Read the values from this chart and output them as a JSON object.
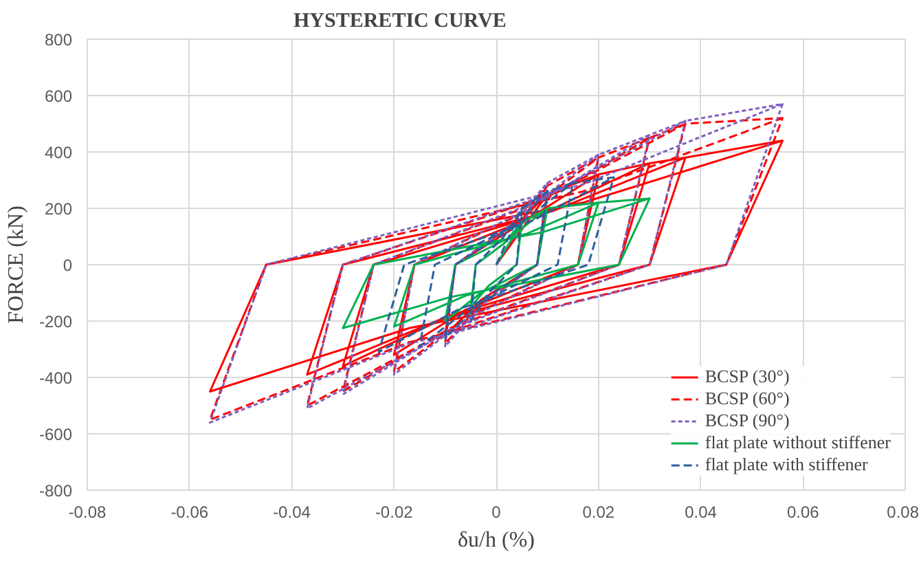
{
  "chart_data": {
    "type": "line",
    "title": "HYSTERETIC CURVE",
    "xlabel": "δu/h (%)",
    "ylabel": "FORCE (kN)",
    "xlim": [
      -0.08,
      0.08
    ],
    "xticks": [
      -0.08,
      -0.06,
      -0.04,
      -0.02,
      0,
      0.02,
      0.04,
      0.06,
      0.08
    ],
    "ylim": [
      -800,
      800
    ],
    "yticks": [
      -800,
      -600,
      -400,
      -200,
      0,
      200,
      400,
      600,
      800
    ],
    "grid": true,
    "legend": "bottom right",
    "series": [
      {
        "name": "BCSP (30°)",
        "color": "#ff0000",
        "line_style": "solid",
        "x": [
          0,
          0.01,
          0.008,
          -0.003,
          -0.01,
          -0.008,
          0.003,
          0.01,
          0.02,
          0.016,
          -0.006,
          -0.02,
          -0.016,
          0.006,
          0.02,
          0.03,
          0.024,
          -0.009,
          -0.03,
          -0.024,
          0.009,
          0.03,
          0.037,
          0.03,
          -0.011,
          -0.037,
          -0.03,
          0.011,
          0.037,
          0.056,
          0.045,
          -0.017,
          -0.056,
          -0.045,
          0.017,
          0.056
        ],
        "values": [
          0,
          250,
          0,
          -125,
          -250,
          0,
          125,
          250,
          320,
          0,
          -160,
          -320,
          0,
          160,
          320,
          360,
          0,
          -180,
          -360,
          0,
          180,
          360,
          380,
          0,
          -195,
          -390,
          0,
          190,
          380,
          440,
          0,
          -225,
          -450,
          0,
          220,
          440
        ]
      },
      {
        "name": "BCSP (60°)",
        "color": "#ff0000",
        "line_style": "dashed",
        "x": [
          0,
          0.01,
          0.008,
          -0.003,
          -0.01,
          -0.008,
          0.003,
          0.01,
          0.02,
          0.016,
          -0.006,
          -0.02,
          -0.016,
          0.006,
          0.02,
          0.03,
          0.024,
          -0.009,
          -0.03,
          -0.024,
          0.009,
          0.03,
          0.037,
          0.03,
          -0.011,
          -0.037,
          -0.03,
          0.011,
          0.037,
          0.056,
          0.045,
          -0.017,
          -0.056,
          -0.045,
          0.017,
          0.056
        ],
        "values": [
          0,
          280,
          0,
          -140,
          -280,
          0,
          140,
          280,
          380,
          0,
          -190,
          -380,
          0,
          190,
          380,
          450,
          0,
          -225,
          -450,
          0,
          225,
          450,
          500,
          0,
          -250,
          -500,
          0,
          250,
          500,
          520,
          0,
          -275,
          -550,
          0,
          260,
          520
        ]
      },
      {
        "name": "BCSP (90°)",
        "color": "#7f5fbf",
        "line_style": "dotted",
        "x": [
          0,
          0.01,
          0.008,
          -0.003,
          -0.01,
          -0.008,
          0.003,
          0.01,
          0.02,
          0.016,
          -0.006,
          -0.02,
          -0.016,
          0.006,
          0.02,
          0.03,
          0.024,
          -0.009,
          -0.03,
          -0.024,
          0.009,
          0.03,
          0.037,
          0.03,
          -0.011,
          -0.037,
          -0.03,
          0.011,
          0.037,
          0.056,
          0.045,
          -0.017,
          -0.056,
          -0.045,
          0.017,
          0.056
        ],
        "values": [
          0,
          290,
          0,
          -145,
          -290,
          0,
          145,
          290,
          390,
          0,
          -195,
          -390,
          0,
          195,
          390,
          460,
          0,
          -230,
          -460,
          0,
          230,
          460,
          510,
          0,
          -255,
          -510,
          0,
          255,
          510,
          570,
          0,
          -280,
          -560,
          0,
          285,
          570
        ]
      },
      {
        "name": "flat plate without stiffener",
        "color": "#00b050",
        "line_style": "solid",
        "x": [
          0,
          0.005,
          0.004,
          -0.0015,
          -0.005,
          -0.004,
          0.0015,
          0.005,
          0.01,
          0.008,
          -0.003,
          -0.01,
          -0.008,
          0.003,
          0.01,
          0.02,
          0.016,
          -0.006,
          -0.02,
          -0.016,
          0.006,
          0.02,
          0.03,
          0.024,
          -0.009,
          -0.03,
          -0.024,
          0.009,
          0.03
        ],
        "values": [
          0,
          150,
          0,
          -75,
          -150,
          0,
          75,
          150,
          200,
          0,
          -100,
          -200,
          0,
          100,
          200,
          220,
          0,
          -110,
          -220,
          0,
          110,
          220,
          235,
          0,
          -115,
          -225,
          0,
          115,
          235
        ]
      },
      {
        "name": "flat plate with stiffener",
        "color": "#2e5e9e",
        "line_style": "dashed",
        "x": [
          0,
          0.005,
          0.004,
          -0.0015,
          -0.005,
          -0.004,
          0.0015,
          0.005,
          0.01,
          0.008,
          -0.003,
          -0.01,
          -0.008,
          0.003,
          0.01,
          0.015,
          0.012,
          -0.0045,
          -0.015,
          -0.012,
          0.0045,
          0.015,
          0.023,
          0.018,
          -0.007,
          -0.023,
          -0.018,
          0.007,
          0.023
        ],
        "values": [
          0,
          200,
          0,
          -100,
          -200,
          0,
          100,
          200,
          260,
          0,
          -130,
          -260,
          0,
          130,
          260,
          290,
          0,
          -145,
          -290,
          0,
          145,
          290,
          310,
          0,
          -155,
          -310,
          0,
          155,
          310
        ]
      }
    ]
  }
}
